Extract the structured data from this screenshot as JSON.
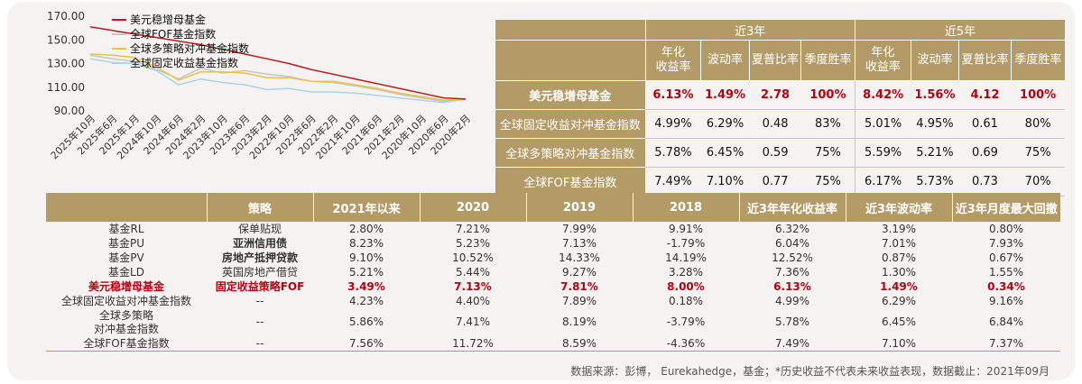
{
  "chart_data": {
    "type": "line",
    "x": [
      "2025年10月",
      "2025年6月",
      "2025年1月",
      "2024年10月",
      "2024年6月",
      "2024年2月",
      "2023年10月",
      "2023年6月",
      "2023年2月",
      "2022年10月",
      "2022年6月",
      "2022年2月",
      "2021年10月",
      "2021年6月",
      "2021年2月",
      "2020年10月",
      "2020年6月",
      "2020年2月"
    ],
    "ylim": [
      90,
      170
    ],
    "yticks": [
      "170.00",
      "150.00",
      "130.00",
      "110.00",
      "90.00"
    ],
    "ytick_values": [
      170,
      150,
      130,
      110,
      90
    ],
    "series": [
      {
        "name": "美元稳增母基金",
        "color": "#c0161f",
        "width": 1.5,
        "values": [
          161,
          158,
          155,
          152,
          149,
          146,
          142,
          138,
          134,
          130,
          125,
          121,
          117,
          113,
          109,
          105,
          101,
          100
        ]
      },
      {
        "name": "全球FOF基金指数",
        "color": "#c6c6c6",
        "width": 1.5,
        "values": [
          137,
          134,
          132,
          125,
          117,
          126,
          122,
          124,
          121,
          119,
          115,
          114,
          111,
          108,
          104,
          101,
          98,
          100
        ]
      },
      {
        "name": "全球多策略对冲基金指数",
        "color": "#ecc341",
        "width": 1.5,
        "values": [
          138,
          137,
          135,
          127,
          116,
          123,
          123,
          122,
          118,
          118,
          115,
          115,
          112,
          109,
          105,
          102,
          99,
          100
        ]
      },
      {
        "name": "全球固定收益基金指数",
        "color": "#aed3e6",
        "width": 1.5,
        "values": [
          134,
          131,
          130,
          124,
          112,
          117,
          114,
          112,
          108,
          109,
          106,
          106,
          105,
          103,
          101,
          99,
          97,
          100
        ]
      }
    ]
  },
  "top_table": {
    "group_headers": [
      "近3年",
      "近5年"
    ],
    "col_headers": [
      "年化\n收益率",
      "波动率",
      "夏普比率",
      "季度胜率",
      "年化\n收益率",
      "波动率",
      "夏普比率",
      "季度胜率"
    ],
    "rows": [
      {
        "name": "美元稳增母基金",
        "values": [
          "6.13%",
          "1.49%",
          "2.78",
          "100%",
          "8.42%",
          "1.56%",
          "4.12",
          "100%"
        ]
      },
      {
        "name": "全球固定收益对冲基金指数",
        "values": [
          "4.99%",
          "6.29%",
          "0.48",
          "83%",
          "5.01%",
          "4.95%",
          "0.61",
          "80%"
        ]
      },
      {
        "name": "全球多策略对冲基金指数",
        "values": [
          "5.78%",
          "6.45%",
          "0.59",
          "75%",
          "5.59%",
          "5.21%",
          "0.69",
          "75%"
        ]
      },
      {
        "name": "全球FOF基金指数",
        "values": [
          "7.49%",
          "7.10%",
          "0.77",
          "75%",
          "6.17%",
          "5.73%",
          "0.73",
          "70%"
        ]
      }
    ]
  },
  "bottom_table": {
    "headers": [
      "",
      "策略",
      "2021年以来",
      "2020",
      "2019",
      "2018",
      "近3年年化收益率",
      "近3年波动率",
      "近3年月度最大回撤"
    ],
    "rows": [
      {
        "name": "基金RL",
        "strategy": "保单贴现",
        "values": [
          "2.80%",
          "7.21%",
          "7.99%",
          "9.91%",
          "6.32%",
          "3.19%",
          "0.80%"
        ]
      },
      {
        "name": "基金PU",
        "strategy": "亚洲信用债",
        "values": [
          "8.23%",
          "5.23%",
          "7.13%",
          "-1.79%",
          "6.04%",
          "7.01%",
          "7.93%"
        ]
      },
      {
        "name": "基金PV",
        "strategy": "房地产抵押贷款",
        "values": [
          "9.10%",
          "10.52%",
          "14.33%",
          "14.19%",
          "12.52%",
          "0.87%",
          "0.67%"
        ]
      },
      {
        "name": "基金LD",
        "strategy": "英国房地产借贷",
        "values": [
          "5.21%",
          "5.44%",
          "9.27%",
          "3.28%",
          "7.36%",
          "1.30%",
          "1.55%"
        ]
      },
      {
        "name": "美元稳增母基金",
        "strategy": "固定收益策略FOF",
        "values": [
          "3.49%",
          "7.13%",
          "7.81%",
          "8.00%",
          "6.13%",
          "1.49%",
          "0.34%"
        ]
      },
      {
        "name": "全球固定收益对冲基金指数",
        "strategy": "--",
        "values": [
          "4.23%",
          "4.40%",
          "7.89%",
          "0.18%",
          "4.99%",
          "6.29%",
          "9.16%"
        ]
      },
      {
        "name_line1": "全球多策略",
        "name_line2": "对冲基金指数",
        "strategy": "--",
        "values": [
          "5.86%",
          "7.41%",
          "8.19%",
          "-3.79%",
          "5.78%",
          "6.45%",
          "6.84%"
        ]
      },
      {
        "name": "全球FOF基金指数",
        "strategy": "--",
        "values": [
          "7.56%",
          "11.72%",
          "8.59%",
          "-4.36%",
          "7.49%",
          "7.10%",
          "7.37%"
        ]
      }
    ]
  },
  "footnote": "数据来源：彭博， Eurekahedge，基金；*历史收益不代表未来收益表现，数据截止：2021年09月"
}
